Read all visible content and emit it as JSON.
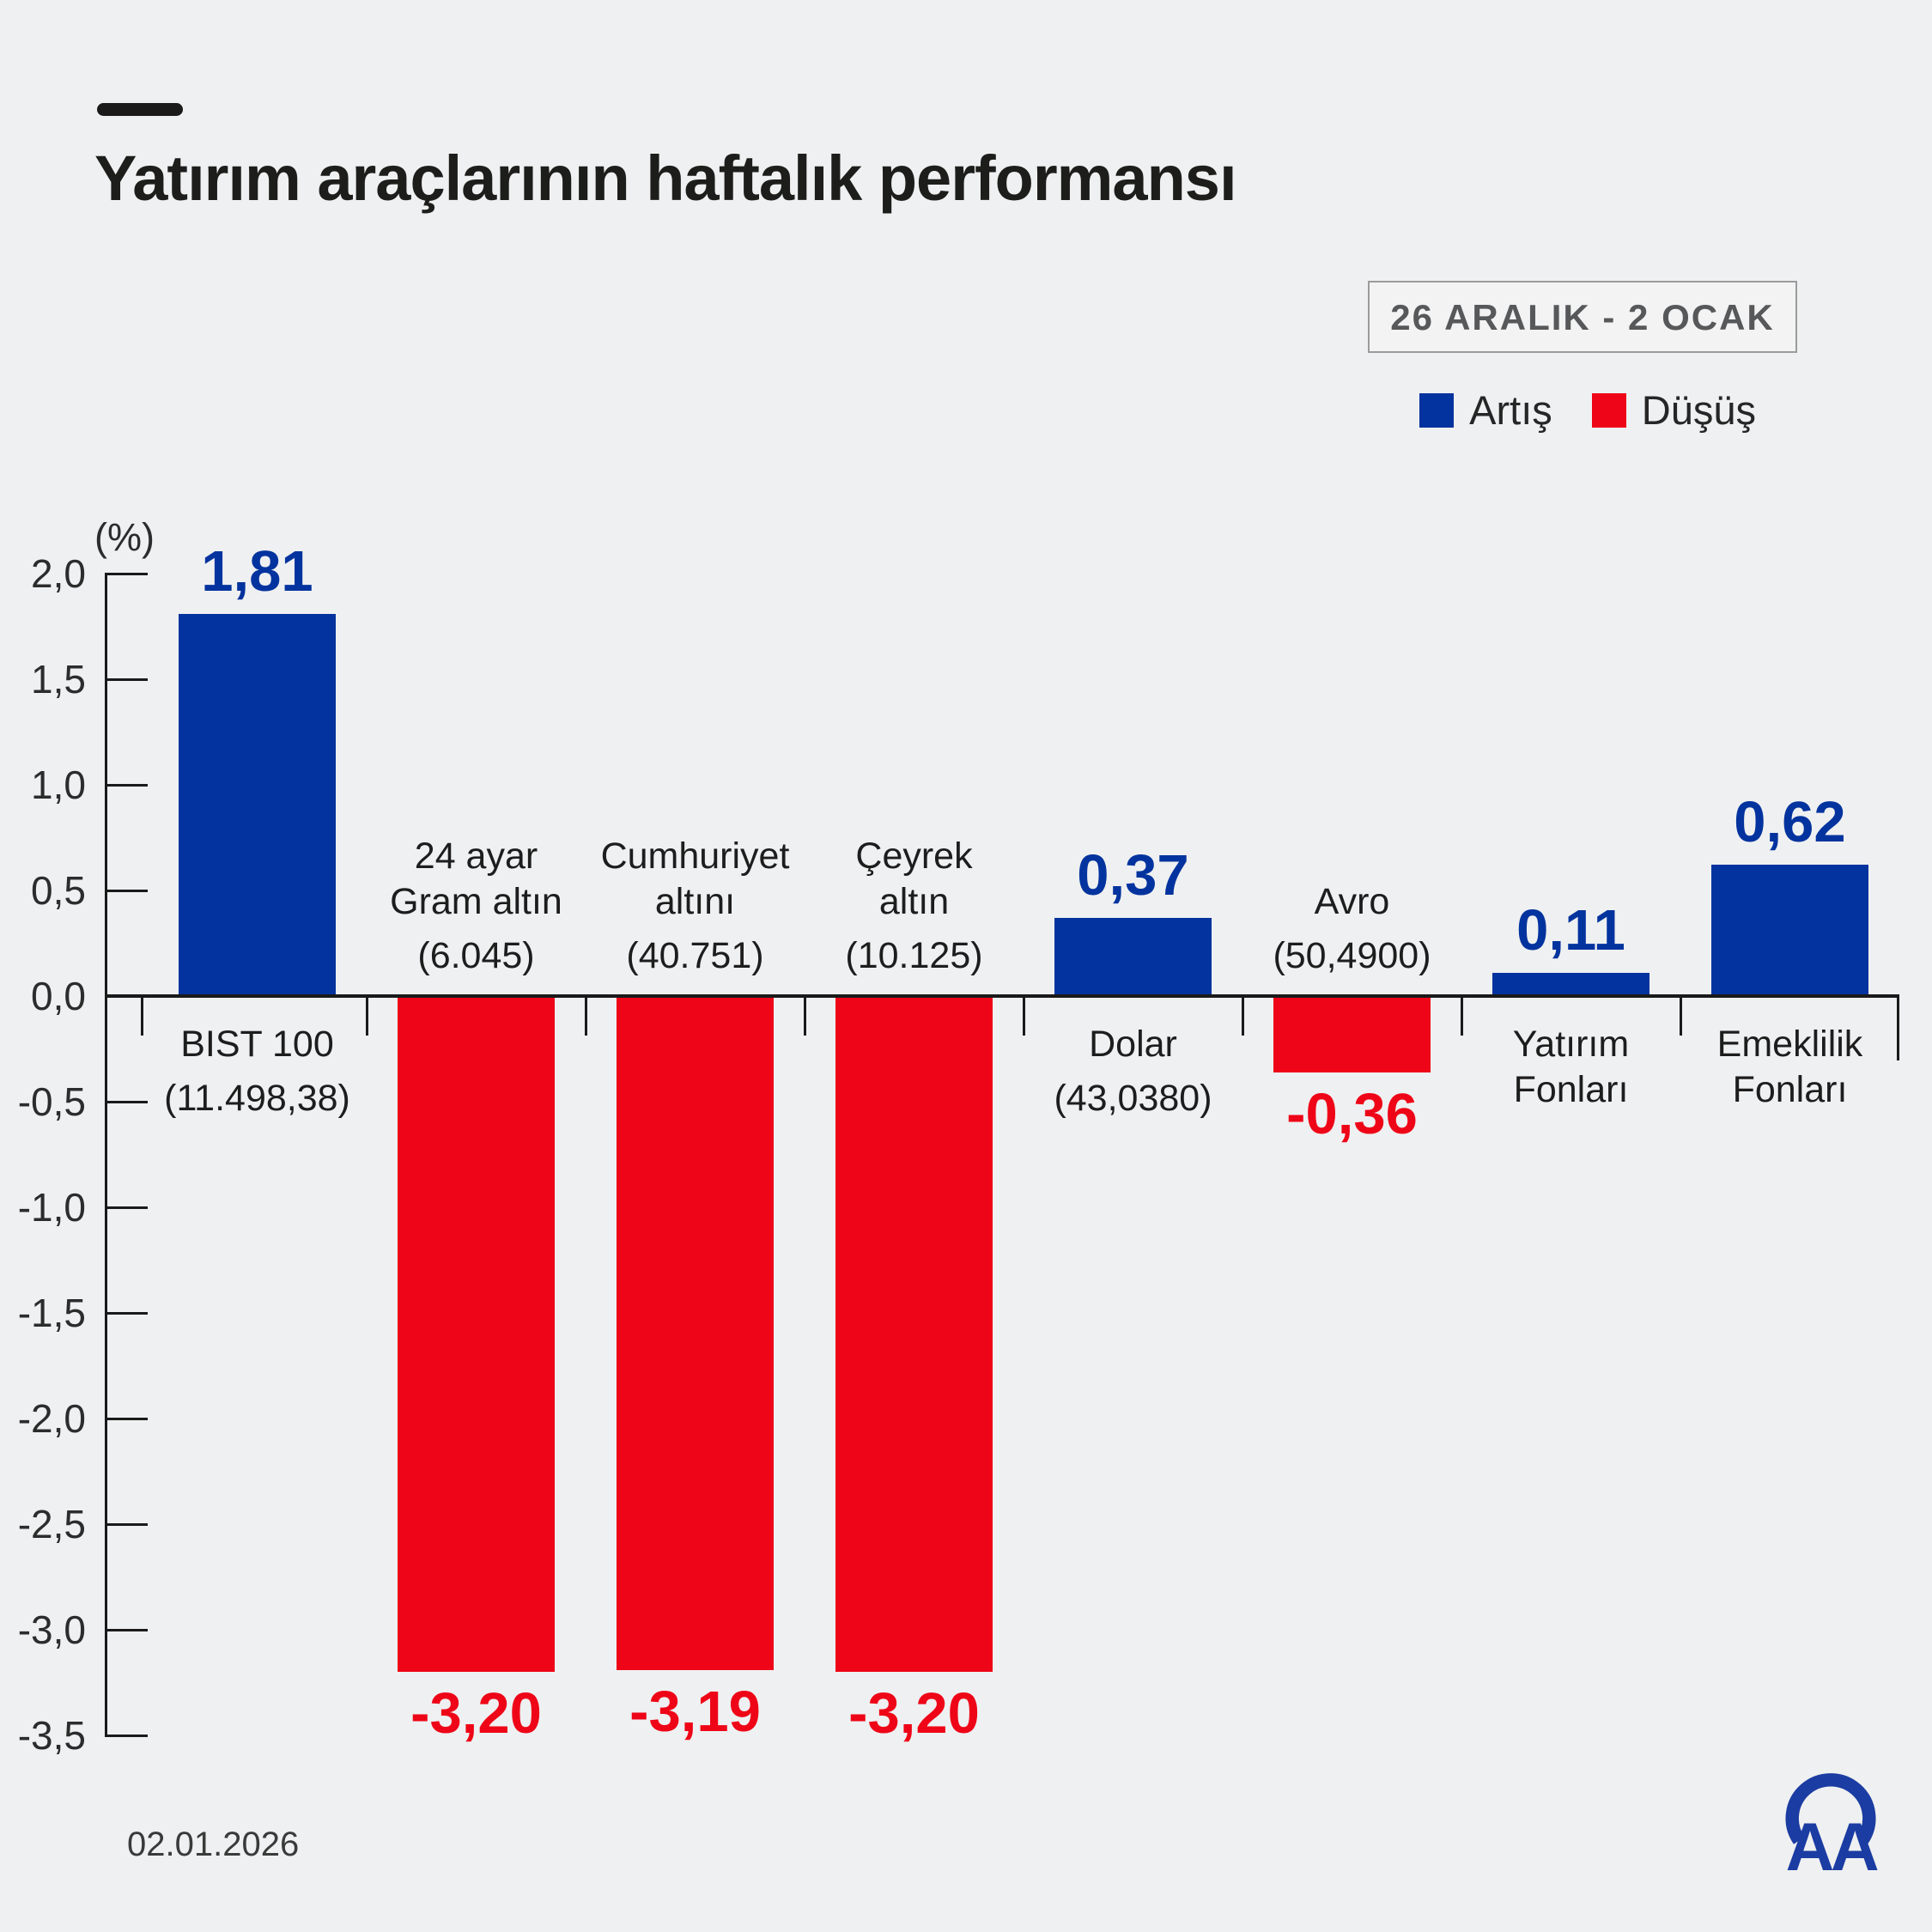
{
  "header": {
    "title": "Yatırım araçlarının haftalık performansı"
  },
  "period_badge": "26 ARALIK - 2 OCAK",
  "legend": [
    {
      "label": "Artış",
      "color": "#03339e"
    },
    {
      "label": "Düşüş",
      "color": "#ee0517"
    }
  ],
  "footer": {
    "date": "02.01.2026",
    "logo": "aa-anadolu-agency"
  },
  "chart_data": {
    "type": "bar",
    "title": "Yatırım araçlarının haftalık performansı",
    "period": "26 ARALIK - 2 OCAK",
    "xlabel": "",
    "ylabel": "(%)",
    "ylim": [
      -3.5,
      2.0
    ],
    "ytick_step": 0.5,
    "ytick_labels": [
      "2,0",
      "1,5",
      "1,0",
      "0,5",
      "0,0",
      "-0,5",
      "-1,0",
      "-1,5",
      "-2,0",
      "-2,5",
      "-3,0",
      "-3,5"
    ],
    "grid": false,
    "legend_position": "top-right",
    "legend_entries": [
      "Artış",
      "Düşüş"
    ],
    "categories": [
      "BIST 100",
      "24 ayar Gram altın",
      "Cumhuriyet altını",
      "Çeyrek altın",
      "Dolar",
      "Avro",
      "Yatırım Fonları",
      "Emeklilik Fonları"
    ],
    "values": [
      1.81,
      -3.2,
      -3.19,
      -3.2,
      0.37,
      -0.36,
      0.11,
      0.62
    ],
    "value_labels": [
      "1,81",
      "-3,20",
      "-3,19",
      "-3,20",
      "0,37",
      "-0,36",
      "0,11",
      "0,62"
    ],
    "colors": {
      "up": "#03339e",
      "down": "#ee0517"
    },
    "bars": [
      {
        "label_lines": [
          "BIST 100",
          "(11.498,38)"
        ],
        "label_side": "below",
        "value": 1.81,
        "value_label": "1,81",
        "color": "up"
      },
      {
        "label_lines": [
          "24 ayar",
          "Gram altın",
          "(6.045)"
        ],
        "label_side": "above",
        "value": -3.2,
        "value_label": "-3,20",
        "color": "down"
      },
      {
        "label_lines": [
          "Cumhuriyet",
          "altını",
          "(40.751)"
        ],
        "label_side": "above",
        "value": -3.19,
        "value_label": "-3,19",
        "color": "down"
      },
      {
        "label_lines": [
          "Çeyrek",
          "altın",
          "(10.125)"
        ],
        "label_side": "above",
        "value": -3.2,
        "value_label": "-3,20",
        "color": "down"
      },
      {
        "label_lines": [
          "Dolar",
          "(43,0380)"
        ],
        "label_side": "below",
        "value": 0.37,
        "value_label": "0,37",
        "color": "up"
      },
      {
        "label_lines": [
          "Avro",
          "(50,4900)"
        ],
        "label_side": "above",
        "value": -0.36,
        "value_label": "-0,36",
        "color": "down"
      },
      {
        "label_lines": [
          "Yatırım",
          "Fonları"
        ],
        "label_side": "below",
        "value": 0.11,
        "value_label": "0,11",
        "color": "up"
      },
      {
        "label_lines": [
          "Emeklilik",
          "Fonları"
        ],
        "label_side": "below",
        "value": 0.62,
        "value_label": "0,62",
        "color": "up"
      }
    ]
  }
}
